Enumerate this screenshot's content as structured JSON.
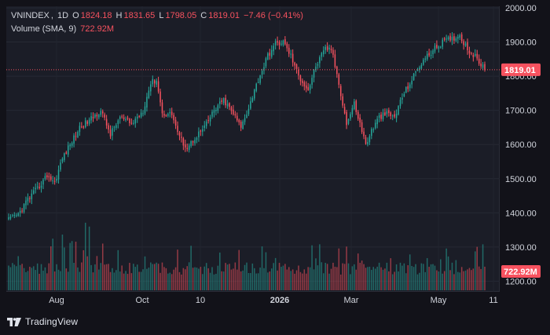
{
  "legend": {
    "symbol": "VNINDEX",
    "interval": "1D",
    "o_label": "O",
    "open": "1824.18",
    "h_label": "H",
    "high": "1831.65",
    "l_label": "L",
    "low": "1798.05",
    "c_label": "C",
    "close": "1819.01",
    "change": "−7.46 (−0.41%)",
    "volume_label": "Volume (SMA, 9)",
    "volume_value": "722.92M"
  },
  "price_badge": "1819.01",
  "volume_badge": "722.92M",
  "branding": "TradingView",
  "colors": {
    "up": "#26a69a",
    "down": "#f7525f",
    "background": "#1b1d27",
    "text": "#d1d4dc"
  },
  "chart_data": {
    "type": "candlestick",
    "y_ticks": [
      "2000.00",
      "1900.00",
      "1800.00",
      "1700.00",
      "1600.00",
      "1500.00",
      "1400.00",
      "1300.00",
      "1200.00"
    ],
    "x_ticks": [
      "Aug",
      "Oct",
      "10",
      "2026",
      "Mar",
      "May",
      "11"
    ],
    "ylim": [
      1170,
      2000
    ],
    "last_price": 1819.01,
    "price_anchors": [
      [
        0,
        1380
      ],
      [
        5,
        1395
      ],
      [
        10,
        1440
      ],
      [
        15,
        1470
      ],
      [
        20,
        1510
      ],
      [
        24,
        1490
      ],
      [
        28,
        1560
      ],
      [
        32,
        1600
      ],
      [
        37,
        1650
      ],
      [
        42,
        1670
      ],
      [
        48,
        1700
      ],
      [
        53,
        1630
      ],
      [
        58,
        1680
      ],
      [
        64,
        1660
      ],
      [
        70,
        1700
      ],
      [
        74,
        1780
      ],
      [
        77,
        1790
      ],
      [
        80,
        1690
      ],
      [
        85,
        1690
      ],
      [
        89,
        1620
      ],
      [
        93,
        1590
      ],
      [
        97,
        1620
      ],
      [
        102,
        1650
      ],
      [
        107,
        1700
      ],
      [
        112,
        1730
      ],
      [
        117,
        1690
      ],
      [
        121,
        1650
      ],
      [
        125,
        1710
      ],
      [
        130,
        1790
      ],
      [
        135,
        1860
      ],
      [
        139,
        1895
      ],
      [
        143,
        1900
      ],
      [
        147,
        1860
      ],
      [
        151,
        1800
      ],
      [
        156,
        1760
      ],
      [
        160,
        1830
      ],
      [
        165,
        1880
      ],
      [
        168,
        1880
      ],
      [
        172,
        1780
      ],
      [
        176,
        1660
      ],
      [
        180,
        1720
      ],
      [
        183,
        1660
      ],
      [
        186,
        1600
      ],
      [
        189,
        1640
      ],
      [
        193,
        1680
      ],
      [
        197,
        1690
      ],
      [
        201,
        1680
      ],
      [
        205,
        1740
      ],
      [
        210,
        1790
      ],
      [
        215,
        1840
      ],
      [
        220,
        1870
      ],
      [
        226,
        1900
      ],
      [
        231,
        1910
      ],
      [
        235,
        1920
      ],
      [
        239,
        1880
      ],
      [
        244,
        1850
      ],
      [
        248,
        1819
      ]
    ],
    "volume_bars": 248,
    "volume_scale_note": "lower pane, unlabeled"
  }
}
